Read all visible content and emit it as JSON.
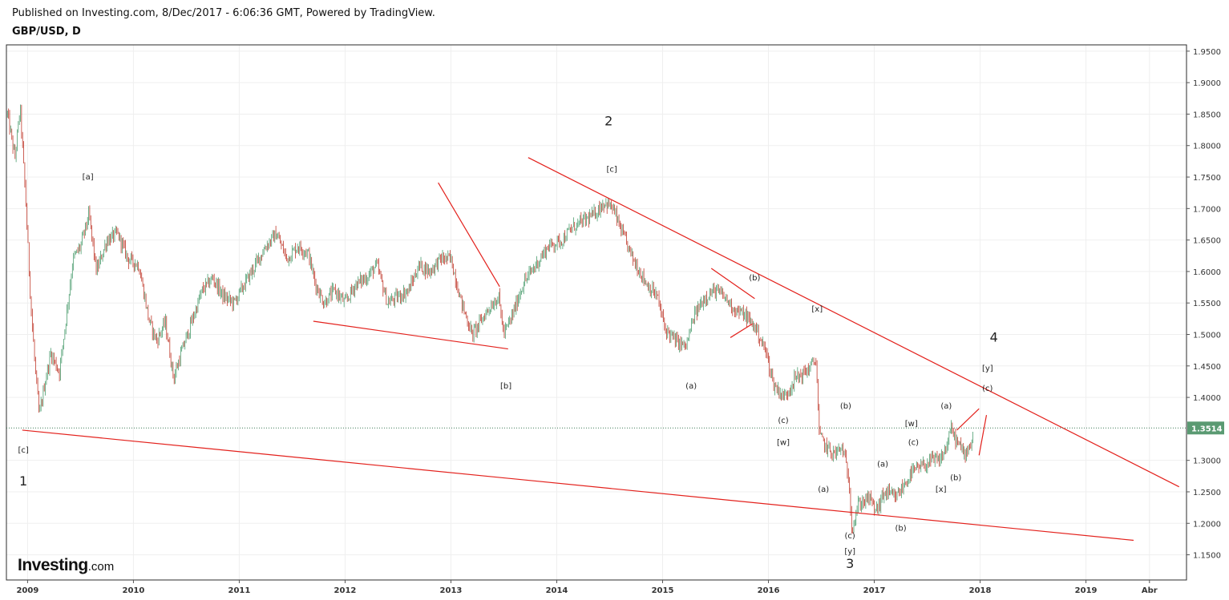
{
  "header": {
    "published_line": "Published on Investing.com, 8/Dec/2017 - 6:06:36 GMT, Powered by TradingView.",
    "symbol_line": "GBP/USD, D"
  },
  "logo": {
    "brand": "Investing",
    "tld": ".com"
  },
  "colors": {
    "up": "#4a9c6d",
    "down": "#c0392b",
    "trendline": "#e3211c",
    "grid": "#efefef",
    "last_price_bg": "#5a9a72"
  },
  "chart_data": {
    "type": "candlestick",
    "symbol": "GBP/USD",
    "interval": "D",
    "ylim": [
      1.11,
      1.96
    ],
    "y_ticks": [
      1.95,
      1.9,
      1.85,
      1.8,
      1.75,
      1.7,
      1.65,
      1.6,
      1.55,
      1.5,
      1.45,
      1.4,
      1.3,
      1.25,
      1.2,
      1.15
    ],
    "y_tick_labels": [
      "1.9500",
      "1.9000",
      "1.8500",
      "1.8000",
      "1.7500",
      "1.7000",
      "1.6500",
      "1.6000",
      "1.5500",
      "1.5000",
      "1.4500",
      "1.4000",
      "1.3000",
      "1.2500",
      "1.2000",
      "1.1500"
    ],
    "xlim": [
      2008.8,
      2019.95
    ],
    "x_ticks": [
      2009,
      2010,
      2011,
      2012,
      2013,
      2014,
      2015,
      2016,
      2017,
      2018,
      2019,
      2019.6
    ],
    "x_tick_labels": [
      "2009",
      "2010",
      "2011",
      "2012",
      "2013",
      "2014",
      "2015",
      "2016",
      "2017",
      "2018",
      "2019",
      "Abr"
    ],
    "last_price": 1.3514,
    "last_price_label": "1.3514",
    "close_path": [
      [
        2008.81,
        1.85
      ],
      [
        2008.88,
        1.78
      ],
      [
        2008.93,
        1.86
      ],
      [
        2008.98,
        1.72
      ],
      [
        2009.03,
        1.55
      ],
      [
        2009.07,
        1.45
      ],
      [
        2009.11,
        1.37
      ],
      [
        2009.16,
        1.42
      ],
      [
        2009.22,
        1.47
      ],
      [
        2009.3,
        1.44
      ],
      [
        2009.36,
        1.52
      ],
      [
        2009.43,
        1.62
      ],
      [
        2009.5,
        1.64
      ],
      [
        2009.58,
        1.69
      ],
      [
        2009.65,
        1.6
      ],
      [
        2009.75,
        1.65
      ],
      [
        2009.85,
        1.66
      ],
      [
        2009.95,
        1.62
      ],
      [
        2010.05,
        1.61
      ],
      [
        2010.15,
        1.52
      ],
      [
        2010.22,
        1.49
      ],
      [
        2010.3,
        1.52
      ],
      [
        2010.38,
        1.43
      ],
      [
        2010.45,
        1.47
      ],
      [
        2010.55,
        1.52
      ],
      [
        2010.65,
        1.57
      ],
      [
        2010.75,
        1.59
      ],
      [
        2010.85,
        1.56
      ],
      [
        2010.95,
        1.55
      ],
      [
        2011.05,
        1.58
      ],
      [
        2011.15,
        1.61
      ],
      [
        2011.25,
        1.64
      ],
      [
        2011.35,
        1.66
      ],
      [
        2011.45,
        1.62
      ],
      [
        2011.55,
        1.64
      ],
      [
        2011.65,
        1.63
      ],
      [
        2011.72,
        1.58
      ],
      [
        2011.8,
        1.55
      ],
      [
        2011.9,
        1.57
      ],
      [
        2012.0,
        1.55
      ],
      [
        2012.1,
        1.58
      ],
      [
        2012.2,
        1.59
      ],
      [
        2012.3,
        1.61
      ],
      [
        2012.4,
        1.55
      ],
      [
        2012.5,
        1.56
      ],
      [
        2012.6,
        1.57
      ],
      [
        2012.7,
        1.61
      ],
      [
        2012.8,
        1.6
      ],
      [
        2012.9,
        1.62
      ],
      [
        2013.0,
        1.62
      ],
      [
        2013.1,
        1.55
      ],
      [
        2013.2,
        1.5
      ],
      [
        2013.28,
        1.52
      ],
      [
        2013.35,
        1.54
      ],
      [
        2013.45,
        1.56
      ],
      [
        2013.5,
        1.5
      ],
      [
        2013.58,
        1.53
      ],
      [
        2013.68,
        1.58
      ],
      [
        2013.8,
        1.61
      ],
      [
        2013.92,
        1.64
      ],
      [
        2014.05,
        1.65
      ],
      [
        2014.15,
        1.67
      ],
      [
        2014.25,
        1.68
      ],
      [
        2014.35,
        1.69
      ],
      [
        2014.45,
        1.71
      ],
      [
        2014.53,
        1.7
      ],
      [
        2014.62,
        1.66
      ],
      [
        2014.72,
        1.62
      ],
      [
        2014.85,
        1.58
      ],
      [
        2014.95,
        1.56
      ],
      [
        2015.02,
        1.51
      ],
      [
        2015.12,
        1.49
      ],
      [
        2015.22,
        1.48
      ],
      [
        2015.3,
        1.53
      ],
      [
        2015.4,
        1.56
      ],
      [
        2015.5,
        1.57
      ],
      [
        2015.58,
        1.56
      ],
      [
        2015.68,
        1.54
      ],
      [
        2015.78,
        1.53
      ],
      [
        2015.88,
        1.51
      ],
      [
        2015.98,
        1.47
      ],
      [
        2016.05,
        1.42
      ],
      [
        2016.15,
        1.4
      ],
      [
        2016.25,
        1.43
      ],
      [
        2016.35,
        1.44
      ],
      [
        2016.45,
        1.46
      ],
      [
        2016.48,
        1.34
      ],
      [
        2016.55,
        1.32
      ],
      [
        2016.62,
        1.31
      ],
      [
        2016.7,
        1.32
      ],
      [
        2016.76,
        1.27
      ],
      [
        2016.79,
        1.19
      ],
      [
        2016.85,
        1.23
      ],
      [
        2016.95,
        1.24
      ],
      [
        2017.02,
        1.22
      ],
      [
        2017.1,
        1.25
      ],
      [
        2017.2,
        1.24
      ],
      [
        2017.28,
        1.26
      ],
      [
        2017.35,
        1.28
      ],
      [
        2017.45,
        1.29
      ],
      [
        2017.55,
        1.3
      ],
      [
        2017.62,
        1.3
      ],
      [
        2017.68,
        1.32
      ],
      [
        2017.72,
        1.35
      ],
      [
        2017.78,
        1.33
      ],
      [
        2017.85,
        1.31
      ],
      [
        2017.92,
        1.33
      ],
      [
        2017.94,
        1.35
      ]
    ],
    "trendlines": [
      {
        "from": [
          2008.95,
          1.348
        ],
        "to": [
          2019.45,
          1.173
        ]
      },
      {
        "from": [
          2013.73,
          1.781
        ],
        "to": [
          2019.88,
          1.258
        ]
      },
      {
        "from": [
          2011.7,
          1.521
        ],
        "to": [
          2013.54,
          1.477
        ]
      },
      {
        "from": [
          2012.88,
          1.741
        ],
        "to": [
          2013.46,
          1.576
        ]
      },
      {
        "from": [
          2015.46,
          1.605
        ],
        "to": [
          2015.87,
          1.557
        ]
      },
      {
        "from": [
          2015.64,
          1.495
        ],
        "to": [
          2015.85,
          1.517
        ]
      },
      {
        "from": [
          2017.78,
          1.348
        ],
        "to": [
          2017.99,
          1.382
        ]
      },
      {
        "from": [
          2017.99,
          1.308
        ],
        "to": [
          2018.06,
          1.372
        ]
      }
    ],
    "annotations": [
      {
        "text": "1",
        "x": 2008.96,
        "y": 1.266,
        "size": "large"
      },
      {
        "text": "2",
        "x": 2014.49,
        "y": 1.838,
        "size": "large"
      },
      {
        "text": "3",
        "x": 2016.77,
        "y": 1.135,
        "size": "large"
      },
      {
        "text": "4",
        "x": 2018.13,
        "y": 1.494,
        "size": "large"
      },
      {
        "text": "[a]",
        "x": 2009.57,
        "y": 1.75,
        "size": "small"
      },
      {
        "text": "[c]",
        "x": 2014.52,
        "y": 1.762,
        "size": "small"
      },
      {
        "text": "[c]",
        "x": 2008.96,
        "y": 1.316,
        "size": "small"
      },
      {
        "text": "[b]",
        "x": 2013.52,
        "y": 1.418,
        "size": "small"
      },
      {
        "text": "(b)",
        "x": 2015.87,
        "y": 1.59,
        "size": "small"
      },
      {
        "text": "[x]",
        "x": 2016.46,
        "y": 1.54,
        "size": "small"
      },
      {
        "text": "(a)",
        "x": 2015.27,
        "y": 1.418,
        "size": "small"
      },
      {
        "text": "(c)",
        "x": 2016.14,
        "y": 1.363,
        "size": "small"
      },
      {
        "text": "[w]",
        "x": 2016.14,
        "y": 1.328,
        "size": "small"
      },
      {
        "text": "(b)",
        "x": 2016.73,
        "y": 1.386,
        "size": "small"
      },
      {
        "text": "(a)",
        "x": 2016.52,
        "y": 1.254,
        "size": "small"
      },
      {
        "text": "(c)",
        "x": 2016.77,
        "y": 1.18,
        "size": "small"
      },
      {
        "text": "[y]",
        "x": 2016.77,
        "y": 1.155,
        "size": "small"
      },
      {
        "text": "(a)",
        "x": 2017.08,
        "y": 1.294,
        "size": "small"
      },
      {
        "text": "(b)",
        "x": 2017.25,
        "y": 1.192,
        "size": "small"
      },
      {
        "text": "[w]",
        "x": 2017.35,
        "y": 1.358,
        "size": "small"
      },
      {
        "text": "(c)",
        "x": 2017.37,
        "y": 1.328,
        "size": "small"
      },
      {
        "text": "[x]",
        "x": 2017.63,
        "y": 1.254,
        "size": "small"
      },
      {
        "text": "(b)",
        "x": 2017.77,
        "y": 1.272,
        "size": "small"
      },
      {
        "text": "(a)",
        "x": 2017.68,
        "y": 1.386,
        "size": "small"
      },
      {
        "text": "[y]",
        "x": 2018.07,
        "y": 1.446,
        "size": "small"
      },
      {
        "text": "(c)",
        "x": 2018.07,
        "y": 1.414,
        "size": "small"
      }
    ]
  }
}
